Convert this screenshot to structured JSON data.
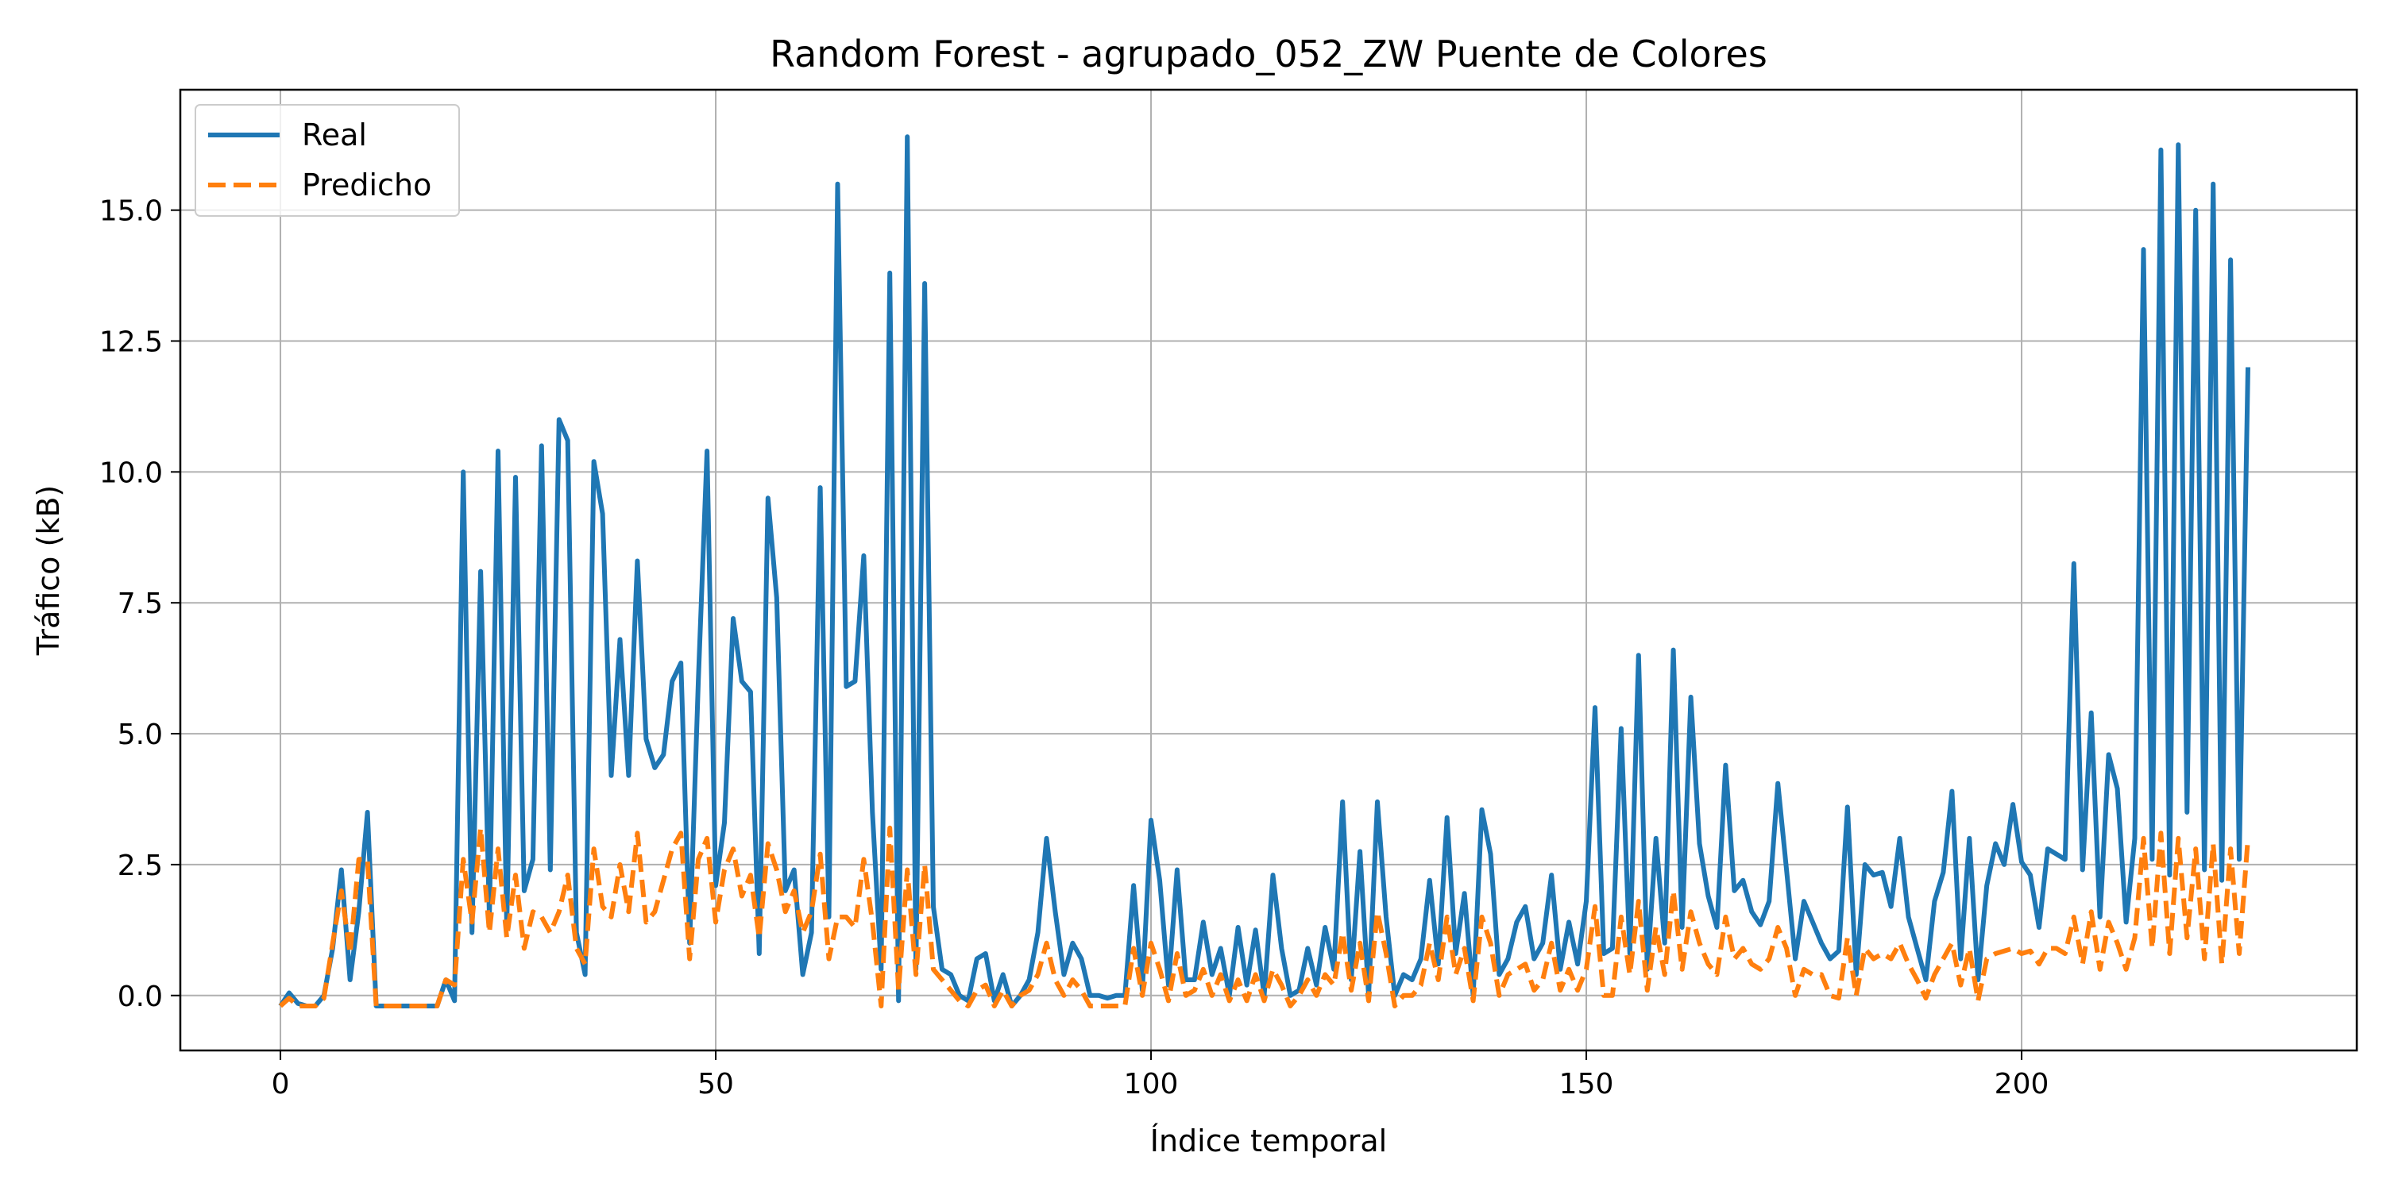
{
  "chart_data": {
    "type": "line",
    "title": "Random Forest - agrupado_052_ZW Puente de Colores",
    "xlabel": "Índice temporal",
    "ylabel": "Tráfico (kB)",
    "xlim": [
      -11.5,
      238.5
    ],
    "ylim": [
      -1.05,
      17.3
    ],
    "xticks": [
      0,
      50,
      100,
      150,
      200
    ],
    "xtick_labels": [
      "0",
      "50",
      "100",
      "150",
      "200"
    ],
    "yticks": [
      0.0,
      2.5,
      5.0,
      7.5,
      10.0,
      12.5,
      15.0
    ],
    "ytick_labels": [
      "0.0",
      "2.5",
      "5.0",
      "7.5",
      "10.0",
      "12.5",
      "15.0"
    ],
    "grid": true,
    "legend_position": "top-left",
    "series": [
      {
        "name": "Real",
        "color": "#1f77b4",
        "style": "solid",
        "x_start": 0,
        "values": [
          -0.2,
          0.05,
          -0.15,
          -0.2,
          -0.2,
          0.0,
          0.9,
          2.4,
          0.3,
          1.6,
          3.5,
          -0.2,
          -0.2,
          -0.2,
          -0.2,
          -0.2,
          -0.2,
          -0.2,
          -0.2,
          0.3,
          -0.1,
          10.0,
          1.2,
          8.1,
          1.5,
          10.4,
          1.3,
          9.9,
          2.0,
          2.6,
          10.5,
          2.4,
          11.0,
          10.6,
          1.2,
          0.4,
          10.2,
          9.2,
          4.2,
          6.8,
          4.2,
          8.3,
          4.9,
          4.35,
          4.6,
          6.0,
          6.35,
          1.0,
          6.0,
          10.4,
          2.1,
          3.3,
          7.2,
          6.0,
          5.8,
          0.8,
          9.5,
          7.6,
          2.0,
          2.4,
          0.4,
          1.2,
          9.7,
          1.5,
          15.5,
          5.9,
          6.0,
          8.4,
          3.5,
          0.5,
          13.8,
          -0.1,
          16.4,
          0.5,
          13.6,
          1.7,
          0.5,
          0.4,
          0.0,
          -0.1,
          0.7,
          0.8,
          -0.1,
          0.4,
          -0.2,
          0.0,
          0.3,
          1.2,
          3.0,
          1.6,
          0.4,
          1.0,
          0.7,
          0.0,
          0.0,
          -0.05,
          0.0,
          0.0,
          2.1,
          0.1,
          3.35,
          2.2,
          0.2,
          2.4,
          0.3,
          0.3,
          1.4,
          0.4,
          0.9,
          0.0,
          1.3,
          0.2,
          1.25,
          0.0,
          2.3,
          0.9,
          0.0,
          0.1,
          0.9,
          0.2,
          1.3,
          0.5,
          3.7,
          0.3,
          2.75,
          0.0,
          3.7,
          1.5,
          0.0,
          0.4,
          0.3,
          0.7,
          2.2,
          0.6,
          3.4,
          0.8,
          1.95,
          0.0,
          3.55,
          2.7,
          0.4,
          0.7,
          1.4,
          1.7,
          0.7,
          1.0,
          2.3,
          0.5,
          1.4,
          0.6,
          1.8,
          5.5,
          0.8,
          0.9,
          5.1,
          0.8,
          6.5,
          0.5,
          3.0,
          1.0,
          6.6,
          1.3,
          5.7,
          2.9,
          1.9,
          1.3,
          4.4,
          2.0,
          2.2,
          1.6,
          1.35,
          1.8,
          4.05,
          2.4,
          0.7,
          1.8,
          1.4,
          1.0,
          0.7,
          0.85,
          3.6,
          0.4,
          2.5,
          2.3,
          2.35,
          1.7,
          3.0,
          1.5,
          0.9,
          0.3,
          1.8,
          2.35,
          3.9,
          0.7,
          3.0,
          0.3,
          2.1,
          2.9,
          2.5,
          3.65,
          2.55,
          2.3,
          1.3,
          2.8,
          2.7,
          2.6,
          8.25,
          2.4,
          5.4,
          1.5,
          4.6,
          3.95,
          1.4,
          3.0,
          14.25,
          2.6,
          16.15,
          2.3,
          16.25,
          3.5,
          15.0,
          2.4,
          15.5,
          2.2,
          14.05,
          2.6,
          12.0
        ]
      },
      {
        "name": "Predicho",
        "color": "#ff7f0e",
        "style": "dashed",
        "x_start": 0,
        "values": [
          -0.2,
          -0.05,
          -0.2,
          -0.2,
          -0.2,
          -0.05,
          1.0,
          2.0,
          0.8,
          2.6,
          2.6,
          -0.2,
          -0.2,
          -0.2,
          -0.2,
          -0.2,
          -0.2,
          -0.2,
          -0.2,
          0.3,
          0.2,
          2.6,
          1.4,
          3.2,
          1.2,
          2.8,
          1.1,
          2.3,
          0.9,
          1.6,
          1.5,
          1.2,
          1.6,
          2.3,
          0.9,
          0.6,
          2.8,
          1.7,
          1.5,
          2.5,
          1.6,
          3.1,
          1.4,
          1.6,
          2.2,
          2.8,
          3.1,
          0.7,
          2.6,
          3.0,
          1.4,
          2.4,
          2.8,
          1.9,
          2.3,
          1.1,
          2.9,
          2.4,
          1.6,
          2.0,
          1.2,
          1.6,
          2.7,
          0.7,
          1.5,
          1.5,
          1.3,
          2.6,
          1.4,
          -0.2,
          3.2,
          0.1,
          2.4,
          0.4,
          2.5,
          0.5,
          0.3,
          0.1,
          -0.1,
          -0.2,
          0.1,
          0.2,
          -0.2,
          0.1,
          -0.2,
          0.0,
          0.1,
          0.4,
          1.0,
          0.3,
          0.0,
          0.3,
          0.1,
          -0.2,
          -0.2,
          -0.2,
          -0.2,
          -0.2,
          0.9,
          0.0,
          1.0,
          0.5,
          -0.1,
          0.8,
          0.0,
          0.1,
          0.5,
          0.0,
          0.4,
          -0.1,
          0.3,
          -0.1,
          0.4,
          -0.1,
          0.5,
          0.2,
          -0.2,
          0.0,
          0.3,
          0.0,
          0.4,
          0.2,
          1.2,
          0.1,
          1.0,
          -0.1,
          1.6,
          0.8,
          -0.2,
          0.0,
          0.0,
          0.2,
          1.0,
          0.3,
          1.5,
          0.4,
          0.9,
          -0.1,
          1.5,
          1.0,
          0.0,
          0.4,
          0.5,
          0.6,
          0.1,
          0.3,
          1.0,
          0.1,
          0.5,
          0.1,
          0.5,
          1.7,
          0.0,
          0.0,
          1.5,
          0.4,
          1.8,
          0.1,
          1.3,
          0.4,
          2.0,
          0.5,
          1.6,
          1.0,
          0.6,
          0.4,
          1.5,
          0.7,
          0.9,
          0.6,
          0.5,
          0.7,
          1.3,
          0.9,
          0.0,
          0.5,
          0.4,
          0.4,
          0.0,
          -0.05,
          1.1,
          0.0,
          0.9,
          0.7,
          0.8,
          0.7,
          1.0,
          0.6,
          0.3,
          -0.05,
          0.4,
          0.7,
          1.0,
          0.2,
          0.9,
          -0.1,
          0.7,
          0.8,
          0.85,
          0.9,
          0.8,
          0.85,
          0.6,
          0.9,
          0.9,
          0.8,
          1.5,
          0.6,
          1.6,
          0.5,
          1.4,
          1.0,
          0.5,
          1.1,
          3.0,
          0.9,
          3.1,
          0.8,
          3.0,
          1.1,
          2.8,
          0.7,
          2.9,
          0.6,
          2.8,
          0.8,
          3.0
        ]
      }
    ]
  }
}
